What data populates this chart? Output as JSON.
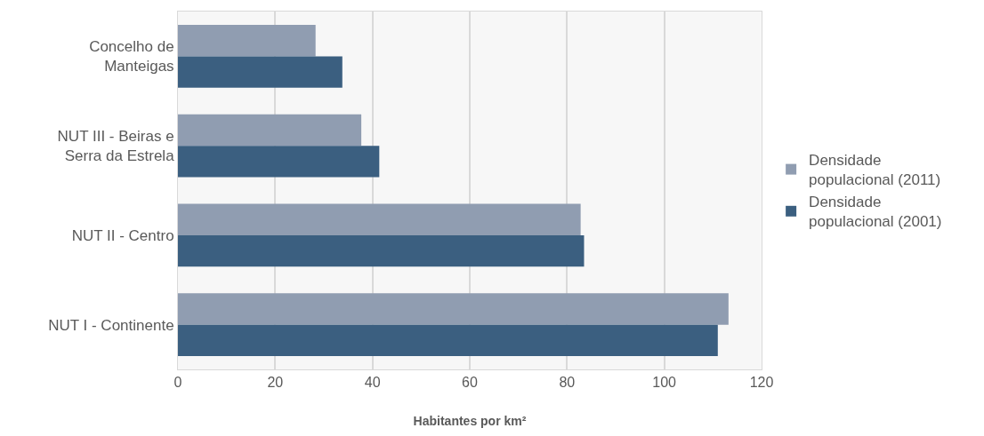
{
  "chart_data": {
    "type": "bar",
    "orientation": "horizontal",
    "xlabel": "Habitantes por km²",
    "categories": [
      "Concelho de Manteigas",
      "NUT III - Beiras e Serra da Estrela",
      "NUT II - Centro",
      "NUT I - Continente"
    ],
    "series": [
      {
        "name": "Densidade populacional (2011)",
        "color": "#909db1",
        "values": [
          28.3,
          37.7,
          82.8,
          113.2
        ]
      },
      {
        "name": "Densidade populacional (2001)",
        "color": "#3b5f80",
        "values": [
          33.8,
          41.4,
          83.5,
          111.0
        ]
      }
    ],
    "xlim": [
      0,
      120
    ],
    "xticks": [
      0,
      20,
      40,
      60,
      80,
      100,
      120
    ],
    "grid": "x",
    "legend": "right"
  }
}
